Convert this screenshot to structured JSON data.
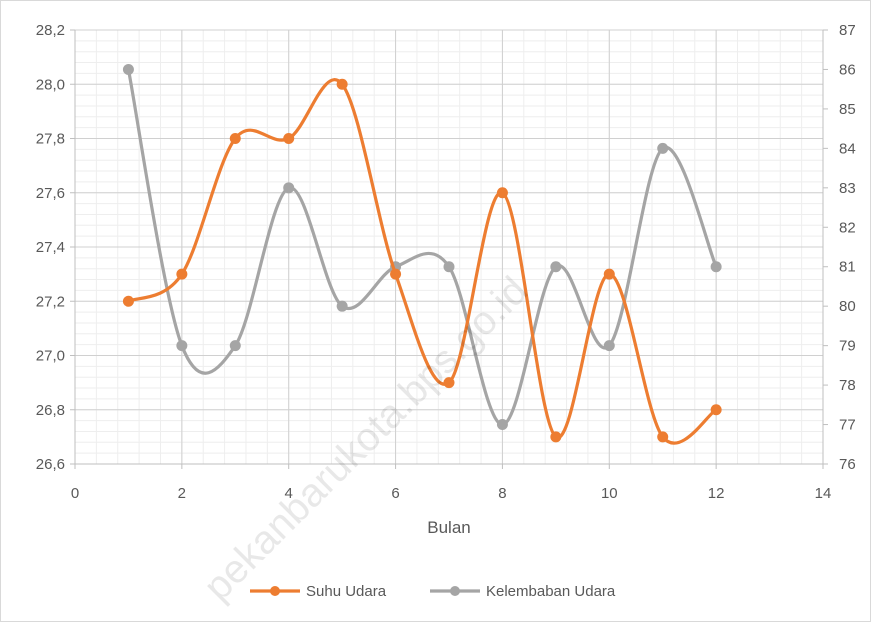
{
  "chart_data": {
    "type": "scatter",
    "xlabel": "Bulan",
    "xlim": [
      0,
      14
    ],
    "xticks": [
      0,
      2,
      4,
      6,
      8,
      10,
      12,
      14
    ],
    "xtick_labels": [
      "0",
      "2",
      "4",
      "6",
      "8",
      "10",
      "12",
      "14"
    ],
    "y_left": {
      "lim": [
        26.6,
        28.2
      ],
      "ticks": [
        26.6,
        26.8,
        27.0,
        27.2,
        27.4,
        27.6,
        27.8,
        28.0,
        28.2
      ],
      "tick_labels": [
        "26,6",
        "26,8",
        "27,0",
        "27,2",
        "27,4",
        "27,6",
        "27,8",
        "28,0",
        "28,2"
      ]
    },
    "y_right": {
      "lim": [
        76,
        87
      ],
      "ticks": [
        76,
        77,
        78,
        79,
        80,
        81,
        82,
        83,
        84,
        85,
        86,
        87
      ],
      "tick_labels": [
        "76",
        "77",
        "78",
        "79",
        "80",
        "81",
        "82",
        "83",
        "84",
        "85",
        "86",
        "87"
      ]
    },
    "grid": true,
    "legend_position": "bottom",
    "series": [
      {
        "name": "Suhu Udara",
        "axis": "left",
        "color": "#ed7d31",
        "smooth": true,
        "x": [
          1,
          2,
          3,
          4,
          5,
          6,
          7,
          8,
          9,
          10,
          11,
          12
        ],
        "y": [
          27.2,
          27.3,
          27.8,
          27.8,
          28.0,
          27.3,
          26.9,
          27.6,
          26.7,
          27.3,
          26.7,
          26.8
        ]
      },
      {
        "name": "Kelembaban Udara",
        "axis": "right",
        "color": "#a5a5a5",
        "smooth": true,
        "x": [
          1,
          2,
          3,
          4,
          5,
          6,
          7,
          8,
          9,
          10,
          11,
          12
        ],
        "y": [
          86,
          79,
          79,
          83,
          80,
          81,
          81,
          77,
          81,
          79,
          84,
          81
        ]
      }
    ],
    "watermark": "pekanbarukota.bps.go.id"
  }
}
